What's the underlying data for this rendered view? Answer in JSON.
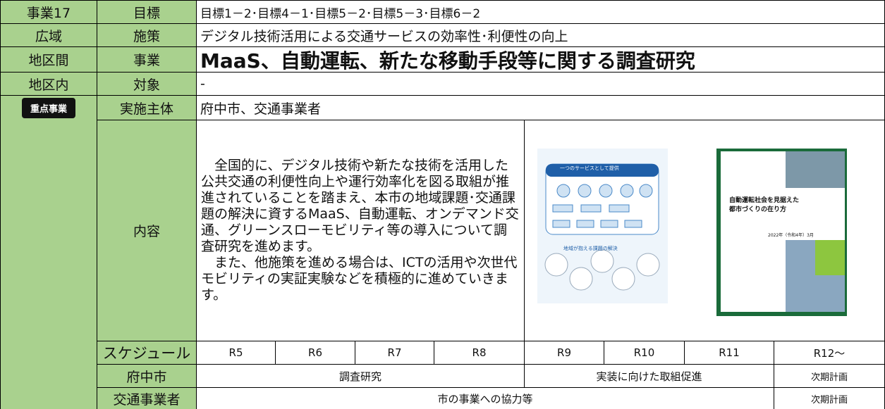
{
  "rows": [
    {
      "tag": "事業17",
      "label": "目標",
      "text": "目標1－2･目標4－1･目標5－2･目標5－3･目標6－2"
    },
    {
      "tag": "広域",
      "label": "施策",
      "text": "デジタル技術活用による交通サービスの効率性･利便性の向上"
    },
    {
      "tag": "地区間",
      "label": "事業",
      "text": "MaaS、自動運転、新たな移動手段等に関する調査研究"
    },
    {
      "tag": "地区内",
      "label": "対象",
      "text": "-"
    },
    {
      "tag": "重点事業",
      "label": "実施主体",
      "text": "府中市、交通事業者"
    }
  ],
  "content": {
    "label": "内容",
    "paragraphs": [
      "全国的に、デジタル技術や新たな技術を活用した公共交通の利便性向上や運行効率化を図る取組が推進されていることを踏まえ、本市の地域課題･交通課題の解決に資するMaaS、自動運転、オンデマンド交通、グリーンスローモビリティ等の導入について調査研究を進めます。",
      "また、他施策を進める場合は、ICTの活用や次世代モビリティの実証実験などを積極的に進めていきます。"
    ],
    "figure1": {
      "heading": "一つのサービスとして提供",
      "caption": "地域が抱える課題の解決"
    },
    "figure2": {
      "title": "自動運転社会を見据えた都市づくりの在り方",
      "date": "2022年（令和4年）3月"
    }
  },
  "schedule": {
    "label": "スケジュール",
    "years": [
      "R5",
      "R6",
      "R7",
      "R8",
      "R9",
      "R10",
      "R11",
      "R12～"
    ],
    "rows": [
      {
        "label": "府中市",
        "items": [
          "調査研究",
          "実装に向けた取組促進",
          "次期計画"
        ]
      },
      {
        "label": "交通事業者",
        "items": [
          "市の事業への協力等",
          "次期計画"
        ]
      }
    ]
  }
}
